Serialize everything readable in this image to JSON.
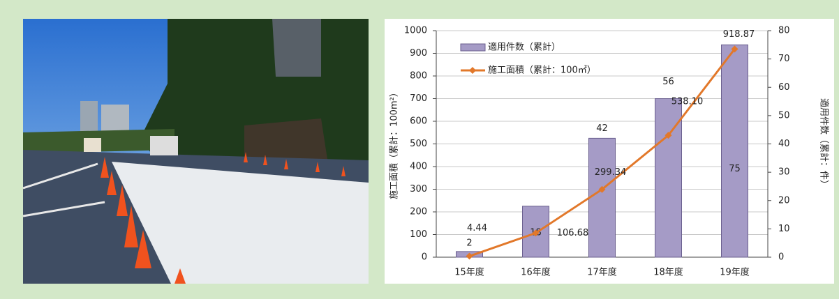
{
  "chart_data": {
    "type": "bar",
    "categories": [
      "15年度",
      "16年度",
      "17年度",
      "18年度",
      "19年度"
    ],
    "y_label": "施工面積（累計：100m²）",
    "y2_label": "適用件数（累計：件）",
    "ylim": [
      0,
      1000
    ],
    "yticks": [
      0,
      100,
      200,
      300,
      400,
      500,
      600,
      700,
      800,
      900,
      1000
    ],
    "y2lim": [
      0,
      80
    ],
    "y2ticks": [
      0,
      10,
      20,
      30,
      40,
      50,
      60,
      70,
      80
    ],
    "grid": true,
    "series": [
      {
        "name": "適用件数（累計）",
        "type": "bar",
        "axis": "y2",
        "color": "#a59bc6",
        "values": [
          2,
          18,
          42,
          56,
          75
        ]
      },
      {
        "name": "施工面積（累計：100㎡）",
        "type": "line",
        "color": "#e2782a",
        "values": [
          4.44,
          106.68,
          299.34,
          538.1,
          918.87
        ],
        "value_labels": [
          "4.44",
          "106.68",
          "299.34",
          "538.10",
          "918.87"
        ]
      }
    ]
  }
}
